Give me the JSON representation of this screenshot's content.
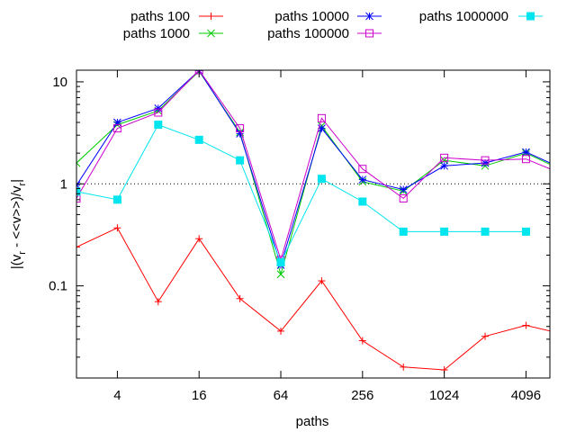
{
  "chart_data": {
    "type": "line",
    "xlabel": "paths",
    "ylabel": "|(v_r - <<v>>)/v_r|",
    "x_scale": "log2",
    "y_scale": "log10",
    "xlim": [
      2,
      6144
    ],
    "ylim": [
      0.0125,
      13
    ],
    "x_ticks": [
      4,
      16,
      64,
      256,
      1024,
      4096
    ],
    "x_tick_labels": [
      "4",
      "16",
      "64",
      "256",
      "1024",
      "4096"
    ],
    "y_ticks": [
      0.1,
      1,
      10
    ],
    "y_tick_labels": [
      "0.1",
      "1",
      "10"
    ],
    "reference_line": 1,
    "legend_position": "top",
    "x": [
      2,
      4,
      8,
      16,
      32,
      64,
      128,
      256,
      512,
      1024,
      2048,
      4096,
      8192
    ],
    "series": [
      {
        "name": "paths 100",
        "color": "#ff0000",
        "marker": "plus",
        "values": [
          0.24,
          0.37,
          0.07,
          0.29,
          0.075,
          0.036,
          0.112,
          0.029,
          0.016,
          0.015,
          0.032,
          0.041,
          0.033
        ]
      },
      {
        "name": "paths 1000",
        "color": "#00cc00",
        "marker": "cross",
        "values": [
          1.6,
          3.8,
          5.2,
          12.7,
          3.2,
          0.13,
          3.7,
          1.05,
          0.85,
          1.7,
          1.5,
          2.0,
          1.3
        ]
      },
      {
        "name": "paths 10000",
        "color": "#0000ff",
        "marker": "star",
        "values": [
          0.97,
          4.0,
          5.5,
          12.9,
          3.1,
          0.16,
          3.5,
          1.1,
          0.88,
          1.5,
          1.6,
          2.05,
          1.35
        ]
      },
      {
        "name": "paths 100000",
        "color": "#cc00cc",
        "marker": "open-square",
        "values": [
          0.72,
          3.5,
          5.0,
          13.0,
          3.5,
          0.18,
          4.4,
          1.4,
          0.72,
          1.8,
          1.7,
          1.75,
          1.2
        ]
      },
      {
        "name": "paths 1000000",
        "color": "#00e5ee",
        "marker": "filled-square",
        "values": [
          0.84,
          0.7,
          3.8,
          2.7,
          1.7,
          0.17,
          1.12,
          0.67,
          0.34,
          0.34,
          0.34,
          0.34,
          null
        ]
      }
    ]
  }
}
